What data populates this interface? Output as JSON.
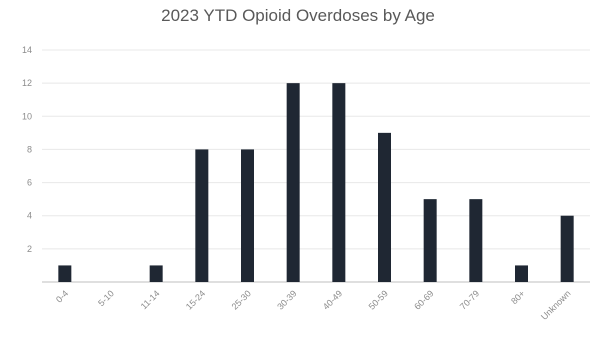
{
  "chart_data": {
    "type": "bar",
    "title": "2023 YTD Opioid Overdoses by Age",
    "categories": [
      "0-4",
      "5-10",
      "11-14",
      "15-24",
      "25-30",
      "30-39",
      "40-49",
      "50-59",
      "60-69",
      "70-79",
      "80+",
      "Unknown"
    ],
    "values": [
      1,
      0,
      1,
      8,
      8,
      12,
      12,
      9,
      5,
      5,
      1,
      4
    ],
    "ylim": [
      0,
      14
    ],
    "yticks": [
      "2",
      "4",
      "6",
      "8",
      "10",
      "12",
      "14"
    ],
    "xlabel": "",
    "ylabel": "",
    "grid": true,
    "legend": "none",
    "colors": {
      "bar": "#1f2733",
      "grid": "#e8e8e8",
      "axis": "#bfbfbf",
      "title": "#595959",
      "tick": "#8c8c8c"
    }
  }
}
